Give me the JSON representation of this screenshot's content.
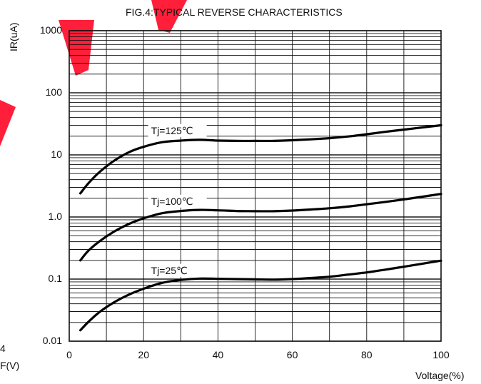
{
  "chart_data": {
    "type": "line",
    "title": "FIG.4:TYPICAL REVERSE CHARACTERISTICS",
    "xlabel": "Voltage(%)",
    "ylabel": "IR(uA)",
    "xlim": [
      0,
      100
    ],
    "ylim": [
      0.01,
      1000
    ],
    "yscale": "log",
    "grid": true,
    "x_ticks": [
      "0",
      "20",
      "40",
      "60",
      "80",
      "100"
    ],
    "y_ticks": [
      "0.01",
      "0.1",
      "1.0",
      "10",
      "100",
      "1000"
    ],
    "series": [
      {
        "name": "Tj=125℃",
        "x": [
          3,
          5,
          8,
          12,
          16,
          20,
          25,
          30,
          35,
          40,
          45,
          50,
          55,
          60,
          65,
          70,
          75,
          80,
          85,
          90,
          95,
          100
        ],
        "y": [
          2.4,
          3.4,
          5.2,
          8.0,
          11.0,
          13.5,
          16.0,
          17.0,
          17.5,
          17.0,
          16.8,
          16.8,
          16.8,
          17.2,
          17.8,
          18.6,
          19.8,
          21.5,
          23.5,
          25.5,
          27.7,
          30.0
        ]
      },
      {
        "name": "Tj=100℃",
        "x": [
          3,
          5,
          8,
          12,
          16,
          20,
          25,
          30,
          35,
          40,
          45,
          50,
          55,
          60,
          65,
          70,
          75,
          80,
          85,
          90,
          95,
          100
        ],
        "y": [
          0.2,
          0.28,
          0.4,
          0.58,
          0.77,
          0.95,
          1.15,
          1.25,
          1.3,
          1.28,
          1.25,
          1.24,
          1.24,
          1.27,
          1.32,
          1.38,
          1.47,
          1.6,
          1.75,
          1.92,
          2.12,
          2.35
        ]
      },
      {
        "name": "Tj=25℃",
        "x": [
          3,
          5,
          8,
          12,
          16,
          20,
          25,
          30,
          35,
          40,
          45,
          50,
          55,
          60,
          65,
          70,
          75,
          80,
          85,
          90,
          95,
          100
        ],
        "y": [
          0.015,
          0.02,
          0.029,
          0.042,
          0.056,
          0.07,
          0.087,
          0.097,
          0.102,
          0.101,
          0.1,
          0.099,
          0.098,
          0.1,
          0.104,
          0.109,
          0.118,
          0.128,
          0.142,
          0.158,
          0.177,
          0.198
        ]
      }
    ]
  },
  "fragments": [
    "4",
    "F(V)"
  ]
}
